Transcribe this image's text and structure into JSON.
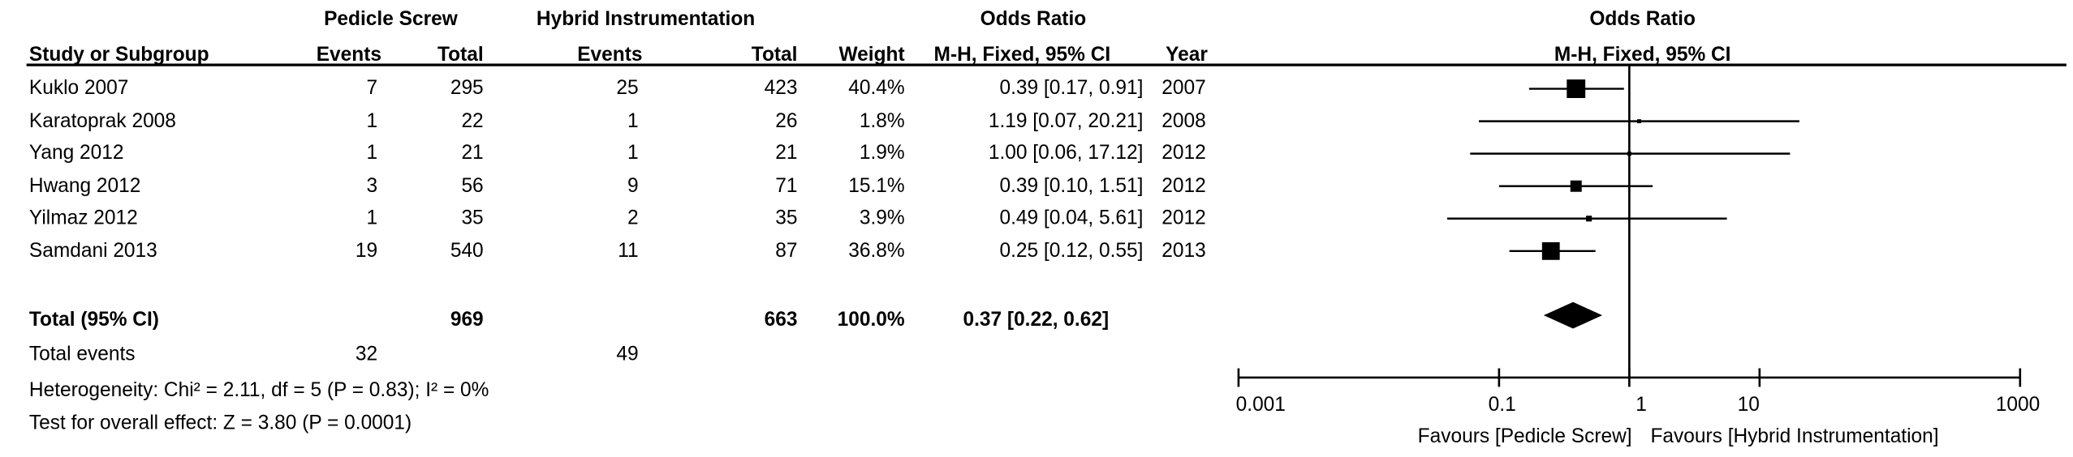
{
  "headers": {
    "group1": "Pedicle Screw",
    "group2": "Hybrid Instrumentation",
    "or_left": "Odds Ratio",
    "or_right": "Odds Ratio",
    "study": "Study or Subgroup",
    "events1": "Events",
    "total1": "Total",
    "events2": "Events",
    "total2": "Total",
    "weight": "Weight",
    "method": "M-H, Fixed, 95% CI",
    "year": "Year",
    "method_right": "M-H, Fixed, 95% CI"
  },
  "rows": [
    {
      "study": "Kuklo 2007",
      "e1": "7",
      "t1": "295",
      "e2": "25",
      "t2": "423",
      "weight": "40.4%",
      "ci": "0.39 [0.17, 0.91]",
      "year": "2007"
    },
    {
      "study": "Karatoprak 2008",
      "e1": "1",
      "t1": "22",
      "e2": "1",
      "t2": "26",
      "weight": "1.8%",
      "ci": "1.19 [0.07, 20.21]",
      "year": "2008"
    },
    {
      "study": "Yang 2012",
      "e1": "1",
      "t1": "21",
      "e2": "1",
      "t2": "21",
      "weight": "1.9%",
      "ci": "1.00 [0.06, 17.12]",
      "year": "2012"
    },
    {
      "study": "Hwang 2012",
      "e1": "3",
      "t1": "56",
      "e2": "9",
      "t2": "71",
      "weight": "15.1%",
      "ci": "0.39 [0.10, 1.51]",
      "year": "2012"
    },
    {
      "study": "Yilmaz 2012",
      "e1": "1",
      "t1": "35",
      "e2": "2",
      "t2": "35",
      "weight": "3.9%",
      "ci": "0.49 [0.04, 5.61]",
      "year": "2012"
    },
    {
      "study": "Samdani 2013",
      "e1": "19",
      "t1": "540",
      "e2": "11",
      "t2": "87",
      "weight": "36.8%",
      "ci": "0.25 [0.12, 0.55]",
      "year": "2013"
    }
  ],
  "total": {
    "label": "Total (95% CI)",
    "t1": "969",
    "t2": "663",
    "weight": "100.0%",
    "ci": "0.37 [0.22, 0.62]"
  },
  "total_events": {
    "label": "Total events",
    "e1": "32",
    "e2": "49"
  },
  "heterogeneity": "Heterogeneity: Chi² = 2.11, df = 5 (P = 0.83); I² = 0%",
  "overall": "Test for overall effect: Z = 3.80 (P = 0.0001)",
  "axis": {
    "ticks": [
      "0.001",
      "0.1",
      "1",
      "10",
      "1000"
    ],
    "favours_left": "Favours [Pedicle Screw]",
    "favours_right": "Favours [Hybrid Instrumentation]"
  },
  "chart_data": {
    "type": "forest",
    "scale": "log",
    "xlim": [
      0.001,
      1000
    ],
    "reference_line": 1,
    "studies": [
      {
        "name": "Kuklo 2007",
        "or": 0.39,
        "lower": 0.17,
        "upper": 0.91,
        "weight": 40.4
      },
      {
        "name": "Karatoprak 2008",
        "or": 1.19,
        "lower": 0.07,
        "upper": 20.21,
        "weight": 1.8
      },
      {
        "name": "Yang 2012",
        "or": 1.0,
        "lower": 0.06,
        "upper": 17.12,
        "weight": 1.9
      },
      {
        "name": "Hwang 2012",
        "or": 0.39,
        "lower": 0.1,
        "upper": 1.51,
        "weight": 15.1
      },
      {
        "name": "Yilmaz 2012",
        "or": 0.49,
        "lower": 0.04,
        "upper": 5.61,
        "weight": 3.9
      },
      {
        "name": "Samdani 2013",
        "or": 0.25,
        "lower": 0.12,
        "upper": 0.55,
        "weight": 36.8
      }
    ],
    "pooled": {
      "or": 0.37,
      "lower": 0.22,
      "upper": 0.62
    }
  }
}
